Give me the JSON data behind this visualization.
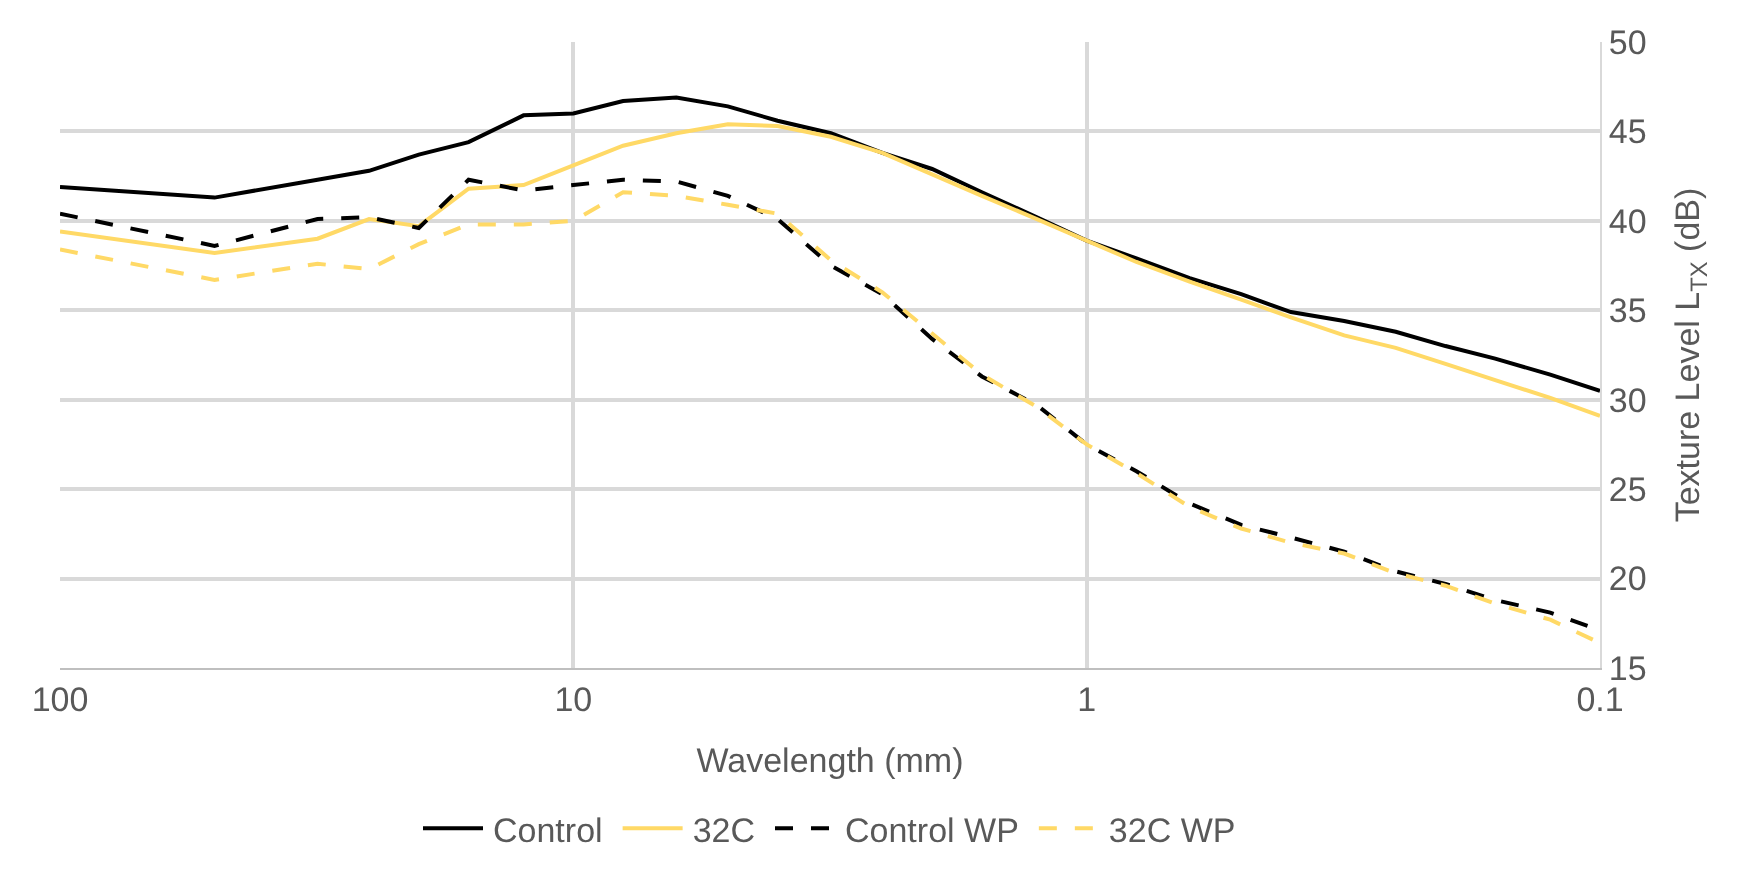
{
  "chart_data": {
    "type": "line",
    "xlabel": "Wavelength (mm)",
    "ylabel": "Texture Level L$_{TX}$ (dB)",
    "log": "x",
    "grid": true,
    "legend": "bottom",
    "marker": "none",
    "x": [
      100,
      50,
      31.5,
      25,
      20,
      16,
      12.5,
      10,
      8,
      6.3,
      5,
      4,
      3.15,
      2.5,
      2,
      1.6,
      1.25,
      1,
      0.8,
      0.63,
      0.5,
      0.4,
      0.315,
      0.25,
      0.2,
      0.16,
      0.125,
      0.1
    ],
    "xlim": [
      100,
      0.1
    ],
    "xticks": [
      100,
      10,
      1,
      0.1
    ],
    "ylim": [
      15,
      50
    ],
    "yticks": [
      15,
      20,
      25,
      30,
      35,
      40,
      45,
      50
    ],
    "series": [
      {
        "name": "Control",
        "color": "#000000",
        "line_style": "solid",
        "values": [
          41.9,
          41.3,
          42.3,
          42.8,
          43.7,
          44.4,
          45.9,
          46.0,
          46.7,
          46.9,
          46.4,
          45.6,
          44.9,
          43.8,
          42.9,
          41.6,
          40.2,
          38.9,
          37.9,
          36.8,
          35.9,
          34.9,
          34.4,
          33.8,
          33.0,
          32.3,
          31.4,
          30.5
        ]
      },
      {
        "name": "32C",
        "color": "#ffd966",
        "line_style": "solid",
        "values": [
          39.4,
          38.2,
          39.0,
          40.1,
          39.7,
          41.8,
          42.0,
          43.1,
          44.2,
          44.9,
          45.4,
          45.3,
          44.7,
          43.8,
          42.6,
          41.4,
          40.1,
          38.9,
          37.7,
          36.6,
          35.6,
          34.6,
          33.6,
          32.9,
          32.0,
          31.1,
          30.1,
          29.1
        ]
      },
      {
        "name": "Control WP",
        "color": "#000000",
        "line_style": "dashed",
        "values": [
          40.4,
          38.6,
          40.1,
          40.2,
          39.6,
          42.3,
          41.7,
          42.0,
          42.3,
          42.2,
          41.4,
          40.1,
          37.5,
          35.9,
          33.4,
          31.3,
          29.7,
          27.5,
          26.0,
          24.2,
          23.0,
          22.3,
          21.5,
          20.4,
          19.7,
          18.8,
          18.1,
          17.1
        ]
      },
      {
        "name": "32C WP",
        "color": "#ffd966",
        "line_style": "dashed",
        "values": [
          38.4,
          36.7,
          37.6,
          37.3,
          38.7,
          39.8,
          39.8,
          40.0,
          41.6,
          41.4,
          40.9,
          40.4,
          37.8,
          36.0,
          33.7,
          31.4,
          29.6,
          27.5,
          25.9,
          24.0,
          22.8,
          22.0,
          21.4,
          20.3,
          19.6,
          18.6,
          17.7,
          16.4
        ]
      }
    ]
  }
}
